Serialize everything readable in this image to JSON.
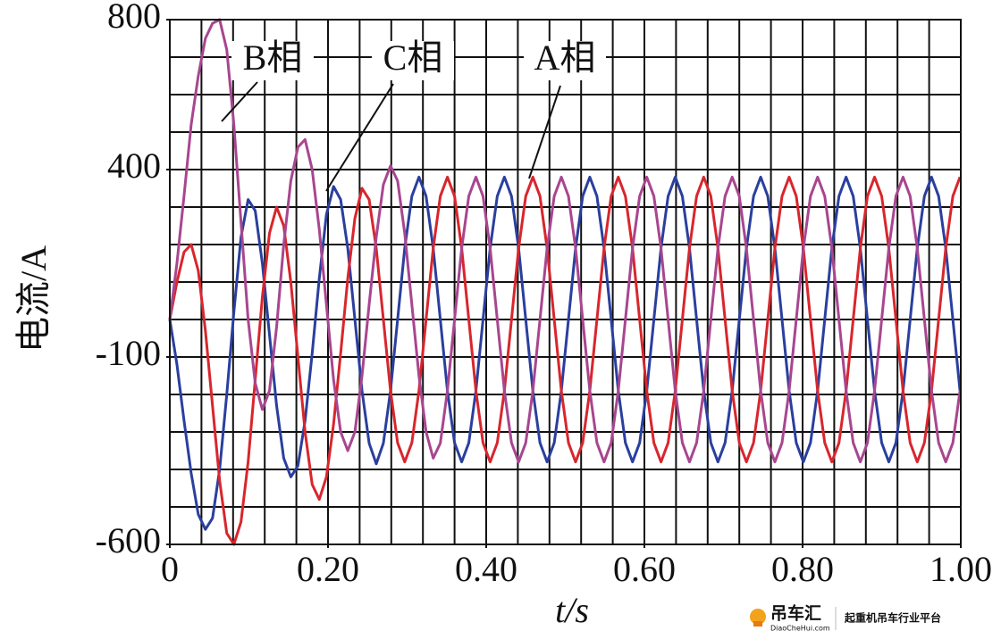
{
  "chart_data": {
    "type": "line",
    "x_label": "t/s",
    "y_label": "电流/A",
    "xlim": [
      0,
      1
    ],
    "ylim": [
      -600,
      800
    ],
    "xticks": [
      0,
      {
        "value": 0.2,
        "label": "0.20"
      },
      {
        "value": 0.4,
        "label": "0.40"
      },
      {
        "value": 0.6,
        "label": "0.60"
      },
      {
        "value": 0.8,
        "label": "0.80"
      },
      {
        "value": 1,
        "label": "1.00"
      }
    ],
    "yticks": [
      800,
      400,
      -100,
      -600
    ],
    "grid": true,
    "x_gridlines": [
      0,
      0.04,
      0.08,
      0.12,
      0.16,
      0.2,
      0.24,
      0.28,
      0.32,
      0.36,
      0.4,
      0.44,
      0.48,
      0.52,
      0.56,
      0.6,
      0.64,
      0.68,
      0.72,
      0.76,
      0.8,
      0.84,
      0.88,
      0.92,
      0.96,
      1
    ],
    "y_gridlines": [
      -600,
      -500,
      -400,
      -300,
      -200,
      -100,
      0,
      100,
      200,
      300,
      400,
      500,
      600,
      700,
      800
    ],
    "x": [
      0,
      0.009,
      0.018,
      0.027,
      0.036,
      0.045,
      0.054,
      0.063,
      0.072,
      0.081,
      0.09,
      0.099,
      0.108,
      0.117,
      0.126,
      0.135,
      0.144,
      0.153,
      0.162,
      0.171,
      0.18,
      0.189,
      0.198,
      0.207,
      0.216,
      0.225,
      0.234,
      0.243,
      0.252,
      0.261,
      0.27,
      0.279,
      0.288,
      0.297,
      0.306,
      0.315,
      0.324,
      0.333,
      0.342,
      0.351,
      0.36,
      0.369,
      0.378,
      0.387,
      0.396,
      0.405,
      0.414,
      0.423,
      0.432,
      0.441,
      0.45,
      0.459,
      0.468,
      0.477,
      0.486,
      0.495,
      0.504,
      0.513,
      0.522,
      0.531,
      0.54,
      0.549,
      0.558,
      0.567,
      0.576,
      0.585,
      0.594,
      0.603,
      0.612,
      0.621,
      0.63,
      0.639,
      0.648,
      0.657,
      0.666,
      0.675,
      0.684,
      0.693,
      0.702,
      0.711,
      0.72,
      0.729,
      0.738,
      0.747,
      0.756,
      0.765,
      0.774,
      0.783,
      0.792,
      0.801,
      0.81,
      0.819,
      0.828,
      0.837,
      0.846,
      0.855,
      0.864,
      0.873,
      0.882,
      0.891,
      0.9,
      0.909,
      0.918,
      0.927,
      0.936,
      0.945,
      0.954,
      0.963,
      0.972,
      0.981,
      0.99,
      0.999
    ],
    "series": [
      {
        "name": "A相",
        "color": "#d8262c",
        "values": [
          0,
          100,
          180,
          200,
          130,
          -30,
          -230,
          -430,
          -570,
          -600,
          -540,
          -380,
          -160,
          60,
          230,
          300,
          250,
          100,
          -100,
          -300,
          -440,
          -480,
          -420,
          -280,
          -90,
          110,
          270,
          350,
          320,
          190,
          0,
          -190,
          -329,
          -380,
          -329,
          -190,
          0,
          190,
          329,
          380,
          329,
          190,
          0,
          -190,
          -329,
          -380,
          -329,
          -190,
          0,
          190,
          329,
          380,
          329,
          190,
          0,
          -190,
          -329,
          -380,
          -329,
          -190,
          0,
          190,
          329,
          380,
          329,
          190,
          0,
          -190,
          -329,
          -380,
          -329,
          -190,
          0,
          190,
          329,
          380,
          329,
          190,
          0,
          -190,
          -329,
          -380,
          -329,
          -190,
          0,
          190,
          329,
          380,
          329,
          190,
          0,
          -190,
          -329,
          -380,
          -329,
          -190,
          0,
          190,
          329,
          380,
          329,
          190,
          0,
          -190,
          -329,
          -380,
          -329,
          -190,
          0,
          190,
          329,
          380
        ]
      },
      {
        "name": "B相",
        "color": "#a8468f",
        "values": [
          0,
          150,
          330,
          520,
          650,
          750,
          790,
          800,
          720,
          520,
          260,
          0,
          -170,
          -240,
          -190,
          -20,
          200,
          370,
          460,
          480,
          400,
          240,
          40,
          -160,
          -300,
          -350,
          -300,
          -150,
          40,
          220,
          360,
          410,
          370,
          230,
          40,
          -150,
          -300,
          -370,
          -330,
          -190,
          0,
          190,
          329,
          380,
          329,
          190,
          0,
          -190,
          -329,
          -380,
          -329,
          -190,
          0,
          190,
          329,
          380,
          329,
          190,
          0,
          -190,
          -329,
          -380,
          -329,
          -190,
          0,
          190,
          329,
          380,
          329,
          190,
          0,
          -190,
          -329,
          -380,
          -329,
          -190,
          0,
          190,
          329,
          380,
          329,
          190,
          0,
          -190,
          -329,
          -380,
          -329,
          -190,
          0,
          190,
          329,
          380,
          329,
          190,
          0,
          -190,
          -329,
          -380,
          -329,
          -190,
          0,
          190,
          329,
          380,
          329,
          190,
          0,
          -190,
          -329,
          -380,
          -329,
          -190
        ]
      },
      {
        "name": "C相",
        "color": "#2a3f9e",
        "values": [
          0,
          -120,
          -270,
          -410,
          -520,
          -560,
          -530,
          -400,
          -200,
          20,
          220,
          320,
          290,
          150,
          -40,
          -230,
          -370,
          -420,
          -390,
          -270,
          -90,
          110,
          280,
          355,
          320,
          190,
          0,
          -190,
          -330,
          -385,
          -330,
          -190,
          0,
          190,
          329,
          380,
          329,
          190,
          0,
          -190,
          -329,
          -380,
          -329,
          -190,
          0,
          190,
          329,
          380,
          329,
          190,
          0,
          -190,
          -329,
          -380,
          -329,
          -190,
          0,
          190,
          329,
          380,
          329,
          190,
          0,
          -190,
          -329,
          -380,
          -329,
          -190,
          0,
          190,
          329,
          380,
          329,
          190,
          0,
          -190,
          -329,
          -380,
          -329,
          -190,
          0,
          190,
          329,
          380,
          329,
          190,
          0,
          -190,
          -329,
          -380,
          -329,
          -190,
          0,
          190,
          329,
          380,
          329,
          190,
          0,
          -190,
          -329,
          -380,
          -329,
          -190,
          0,
          190,
          329,
          380,
          329,
          190,
          0,
          -190
        ]
      }
    ],
    "watermark": {
      "brand": "吊车汇",
      "site": "DiaoCheHui.com",
      "slogan": "起重机吊车行业平台"
    }
  }
}
